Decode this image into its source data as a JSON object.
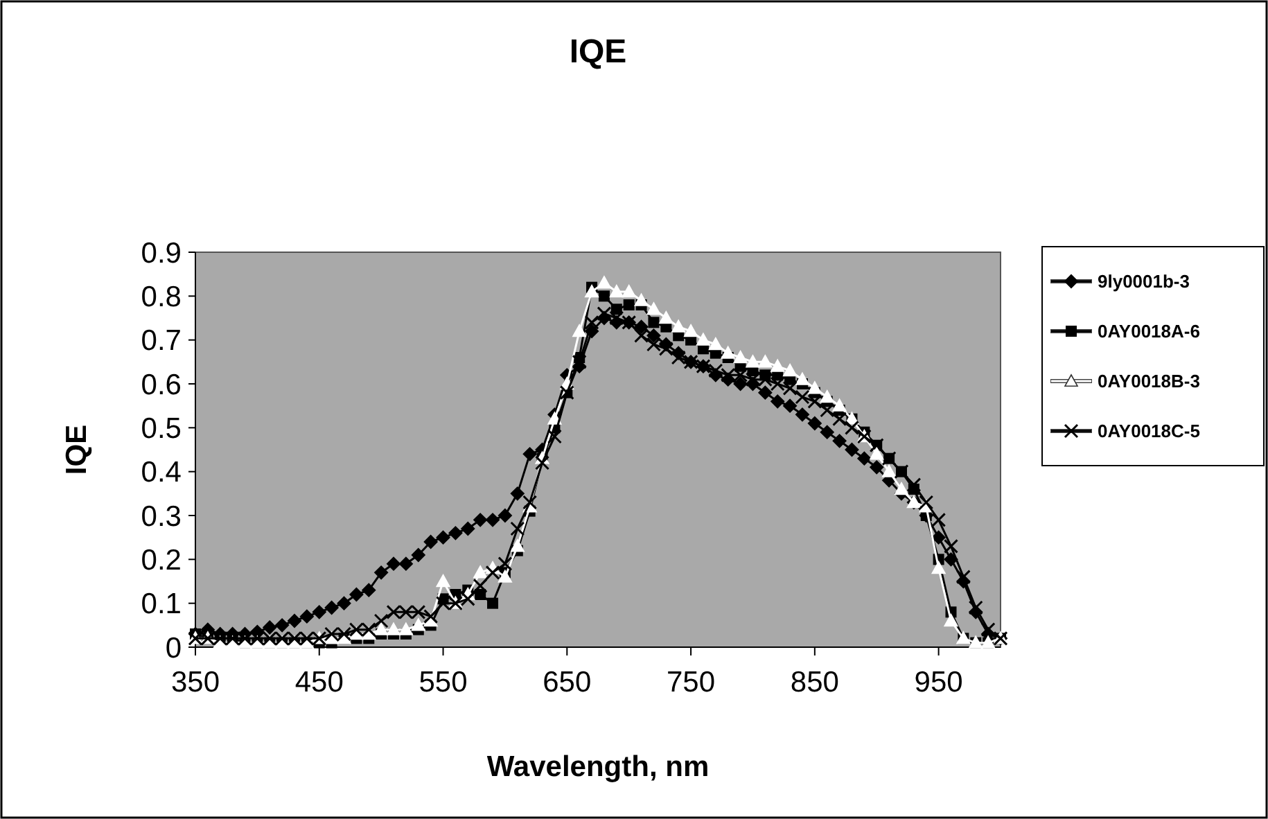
{
  "chart_data": {
    "type": "line",
    "title": "IQE",
    "xlabel": "Wavelength, nm",
    "ylabel": "IQE",
    "x": [
      350,
      360,
      370,
      380,
      390,
      400,
      410,
      420,
      430,
      440,
      450,
      460,
      470,
      480,
      490,
      500,
      510,
      520,
      530,
      540,
      550,
      560,
      570,
      580,
      590,
      600,
      610,
      620,
      630,
      640,
      650,
      660,
      670,
      680,
      690,
      700,
      710,
      720,
      730,
      740,
      750,
      760,
      770,
      780,
      790,
      800,
      810,
      820,
      830,
      840,
      850,
      860,
      870,
      880,
      890,
      900,
      910,
      920,
      930,
      940,
      950,
      960,
      970,
      980,
      990,
      1000
    ],
    "series": [
      {
        "name": "9ly0001b-3",
        "color": "#000000",
        "marker": "diamond",
        "values": [
          0.03,
          0.04,
          0.03,
          0.03,
          0.03,
          0.035,
          0.045,
          0.05,
          0.06,
          0.07,
          0.08,
          0.09,
          0.1,
          0.12,
          0.13,
          0.17,
          0.19,
          0.19,
          0.21,
          0.24,
          0.25,
          0.26,
          0.27,
          0.29,
          0.29,
          0.3,
          0.35,
          0.44,
          0.45,
          0.53,
          0.62,
          0.64,
          0.72,
          0.75,
          0.74,
          0.74,
          0.73,
          0.71,
          0.69,
          0.67,
          0.65,
          0.64,
          0.62,
          0.61,
          0.6,
          0.6,
          0.58,
          0.56,
          0.55,
          0.53,
          0.51,
          0.49,
          0.47,
          0.45,
          0.43,
          0.41,
          0.38,
          0.35,
          0.33,
          0.3,
          0.25,
          0.2,
          0.15,
          0.08,
          0.03,
          0.02
        ]
      },
      {
        "name": "0AY0018A-6",
        "color": "#000000",
        "marker": "square",
        "values": [
          0.03,
          0.02,
          0.02,
          0.02,
          0.01,
          0.01,
          0.01,
          0.01,
          0.01,
          0.01,
          0.01,
          0.01,
          0.02,
          0.02,
          0.02,
          0.03,
          0.03,
          0.03,
          0.04,
          0.05,
          0.11,
          0.12,
          0.13,
          0.12,
          0.1,
          0.17,
          0.22,
          0.31,
          0.43,
          0.5,
          0.58,
          0.66,
          0.82,
          0.8,
          0.77,
          0.78,
          0.78,
          0.74,
          0.73,
          0.71,
          0.7,
          0.68,
          0.67,
          0.66,
          0.64,
          0.63,
          0.62,
          0.62,
          0.61,
          0.6,
          0.58,
          0.56,
          0.54,
          0.52,
          0.49,
          0.46,
          0.43,
          0.4,
          0.36,
          0.3,
          0.2,
          0.08,
          0.02,
          0.01,
          0.01,
          0.02
        ]
      },
      {
        "name": "0AY0018B-3",
        "color": "#ffffff",
        "marker": "triangle",
        "values": [
          0.02,
          0.02,
          0.01,
          0.01,
          0.01,
          0.01,
          0.01,
          0.01,
          0.01,
          0.01,
          0.02,
          0.02,
          0.02,
          0.03,
          0.03,
          0.04,
          0.04,
          0.04,
          0.05,
          0.06,
          0.15,
          0.1,
          0.12,
          0.17,
          0.18,
          0.16,
          0.23,
          0.32,
          0.43,
          0.52,
          0.6,
          0.72,
          0.81,
          0.83,
          0.81,
          0.81,
          0.79,
          0.77,
          0.75,
          0.73,
          0.72,
          0.7,
          0.69,
          0.67,
          0.66,
          0.65,
          0.65,
          0.64,
          0.63,
          0.61,
          0.59,
          0.57,
          0.55,
          0.52,
          0.48,
          0.44,
          0.4,
          0.36,
          0.33,
          0.32,
          0.18,
          0.06,
          0.02,
          0.01,
          0.01,
          0.02
        ]
      },
      {
        "name": "0AY0018C-5",
        "color": "#000000",
        "marker": "cross",
        "values": [
          0.02,
          0.02,
          0.02,
          0.02,
          0.02,
          0.02,
          0.02,
          0.02,
          0.02,
          0.02,
          0.02,
          0.03,
          0.03,
          0.04,
          0.04,
          0.06,
          0.08,
          0.08,
          0.08,
          0.07,
          0.1,
          0.1,
          0.11,
          0.14,
          0.17,
          0.19,
          0.27,
          0.33,
          0.42,
          0.48,
          0.58,
          0.65,
          0.74,
          0.76,
          0.75,
          0.74,
          0.71,
          0.69,
          0.68,
          0.66,
          0.65,
          0.64,
          0.63,
          0.62,
          0.62,
          0.61,
          0.61,
          0.6,
          0.59,
          0.57,
          0.56,
          0.54,
          0.52,
          0.5,
          0.48,
          0.46,
          0.43,
          0.4,
          0.37,
          0.33,
          0.29,
          0.23,
          0.16,
          0.09,
          0.04,
          0.02
        ]
      }
    ],
    "xlim": [
      350,
      1000
    ],
    "xticks": [
      350,
      450,
      550,
      650,
      750,
      850,
      950
    ],
    "ylim": [
      0,
      0.9
    ],
    "yticks": [
      0,
      {
        "value": 0.1,
        "label": "0.1"
      },
      {
        "value": 0.2,
        "label": "0.2"
      },
      {
        "value": 0.3,
        "label": "0.3"
      },
      {
        "value": 0.4,
        "label": "0.4"
      },
      {
        "value": 0.5,
        "label": "0.5"
      },
      {
        "value": 0.6,
        "label": "0.6"
      },
      {
        "value": 0.7,
        "label": "0.7"
      },
      {
        "value": 0.8,
        "label": "0.8"
      },
      {
        "value": 0.9,
        "label": "0.9"
      }
    ],
    "grid": false,
    "legend": "right"
  }
}
